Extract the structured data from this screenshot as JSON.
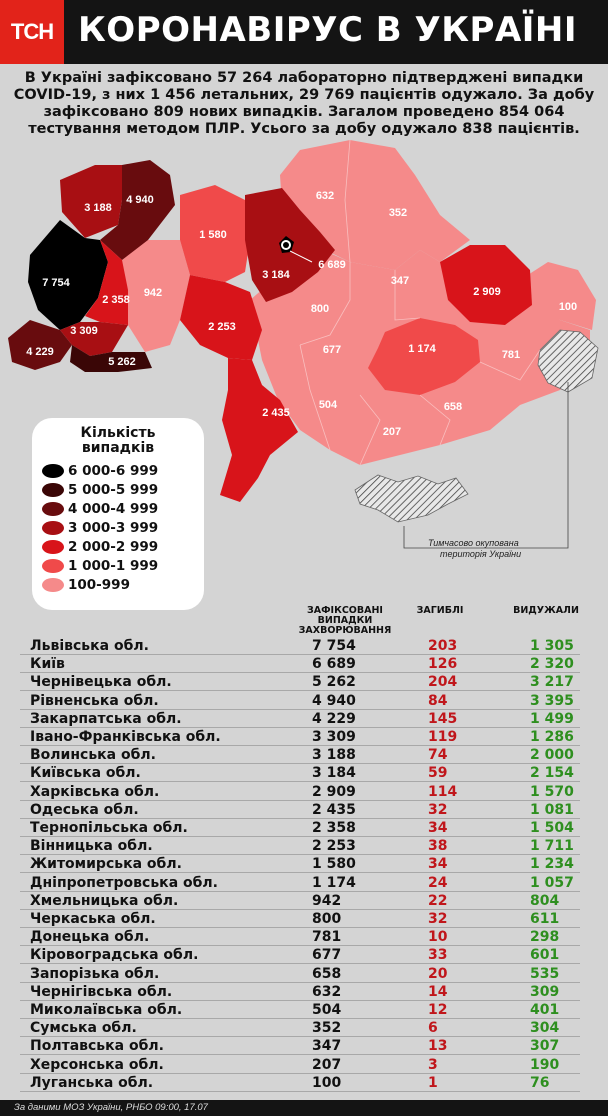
{
  "header": {
    "logo_text": "ТСН",
    "title": "КОРОНАВІРУС В УКРАЇНІ"
  },
  "intro": {
    "text": "В Україні зафіксовано 57 264 лабораторно підтверджені випадки COVID-19, з них 1 456 летальних, 29 769 пацієнтів одужало. За добу зафіксовано 809 нових випадків. Загалом проведено 854 064 тестування методом ПЛР. Усього за добу одужало 838 пацієнтів."
  },
  "map": {
    "occupied_label_line1": "Тимчасово окупована",
    "occupied_label_line2": "територія України",
    "labels": [
      "3 188",
      "4 940",
      "1 580",
      "632",
      "352",
      "7 754",
      "942",
      "2 358",
      "3 184",
      "6 689",
      "347",
      "2 909",
      "100",
      "3 309",
      "800",
      "2 253",
      "677",
      "1 174",
      "781",
      "4 229",
      "5 262",
      "2 435",
      "504",
      "658",
      "207"
    ]
  },
  "legend": {
    "title_line1": "Кількість",
    "title_line2": "випадків",
    "items": [
      {
        "label": "6 000-6 999",
        "color": "#000000"
      },
      {
        "label": "5 000-5 999",
        "color": "#3a0606"
      },
      {
        "label": "4 000-4 999",
        "color": "#680c0e"
      },
      {
        "label": "3 000-3 999",
        "color": "#a80f13"
      },
      {
        "label": "2 000-2 999",
        "color": "#d8141a"
      },
      {
        "label": "1 000-1 999",
        "color": "#f04a4a"
      },
      {
        "label": "100-999",
        "color": "#f58a8a"
      }
    ]
  },
  "table": {
    "headers": {
      "cases_line1": "ЗАФІКСОВАНІ",
      "cases_line2": "ВИПАДКИ",
      "cases_line3": "ЗАХВОРЮВАННЯ",
      "deaths": "ЗАГИБЛІ",
      "recovered": "ВИДУЖАЛИ"
    },
    "rows": [
      {
        "name": "Львівська обл.",
        "cases": "7 754",
        "deaths": "203",
        "recovered": "1 305"
      },
      {
        "name": "Київ",
        "cases": "6 689",
        "deaths": "126",
        "recovered": "2 320"
      },
      {
        "name": "Чернівецька обл.",
        "cases": "5 262",
        "deaths": "204",
        "recovered": "3 217"
      },
      {
        "name": "Рівненська обл.",
        "cases": "4 940",
        "deaths": "84",
        "recovered": "3 395"
      },
      {
        "name": "Закарпатська обл.",
        "cases": "4 229",
        "deaths": "145",
        "recovered": "1 499"
      },
      {
        "name": "Івано-Франківська обл.",
        "cases": "3 309",
        "deaths": "119",
        "recovered": "1 286"
      },
      {
        "name": "Волинська обл.",
        "cases": "3 188",
        "deaths": "74",
        "recovered": "2 000"
      },
      {
        "name": "Київська обл.",
        "cases": "3 184",
        "deaths": "59",
        "recovered": "2 154"
      },
      {
        "name": "Харківська обл.",
        "cases": "2 909",
        "deaths": "114",
        "recovered": "1 570"
      },
      {
        "name": "Одеська обл.",
        "cases": "2 435",
        "deaths": "32",
        "recovered": "1 081"
      },
      {
        "name": "Тернопільська обл.",
        "cases": "2 358",
        "deaths": "34",
        "recovered": "1 504"
      },
      {
        "name": "Вінницька обл.",
        "cases": "2 253",
        "deaths": "38",
        "recovered": "1 711"
      },
      {
        "name": "Житомирська обл.",
        "cases": "1 580",
        "deaths": "34",
        "recovered": "1 234"
      },
      {
        "name": "Дніпропетровська обл.",
        "cases": "1 174",
        "deaths": "24",
        "recovered": "1 057"
      },
      {
        "name": "Хмельницька обл.",
        "cases": "942",
        "deaths": "22",
        "recovered": "804"
      },
      {
        "name": "Черкаська обл.",
        "cases": "800",
        "deaths": "32",
        "recovered": "611"
      },
      {
        "name": "Донецька обл.",
        "cases": "781",
        "deaths": "10",
        "recovered": "298"
      },
      {
        "name": "Кіровоградська обл.",
        "cases": "677",
        "deaths": "33",
        "recovered": "601"
      },
      {
        "name": "Запорізька обл.",
        "cases": "658",
        "deaths": "20",
        "recovered": "535"
      },
      {
        "name": "Чернігівська обл.",
        "cases": "632",
        "deaths": "14",
        "recovered": "309"
      },
      {
        "name": "Миколаївська обл.",
        "cases": "504",
        "deaths": "12",
        "recovered": "401"
      },
      {
        "name": "Сумська обл.",
        "cases": "352",
        "deaths": "6",
        "recovered": "304"
      },
      {
        "name": "Полтавська обл.",
        "cases": "347",
        "deaths": "13",
        "recovered": "307"
      },
      {
        "name": "Херсонська обл.",
        "cases": "207",
        "deaths": "3",
        "recovered": "190"
      },
      {
        "name": "Луганська обл.",
        "cases": "100",
        "deaths": "1",
        "recovered": "76"
      }
    ]
  },
  "footer": {
    "text": "За даними МОЗ України, РНБО 09:00, 17.07"
  }
}
